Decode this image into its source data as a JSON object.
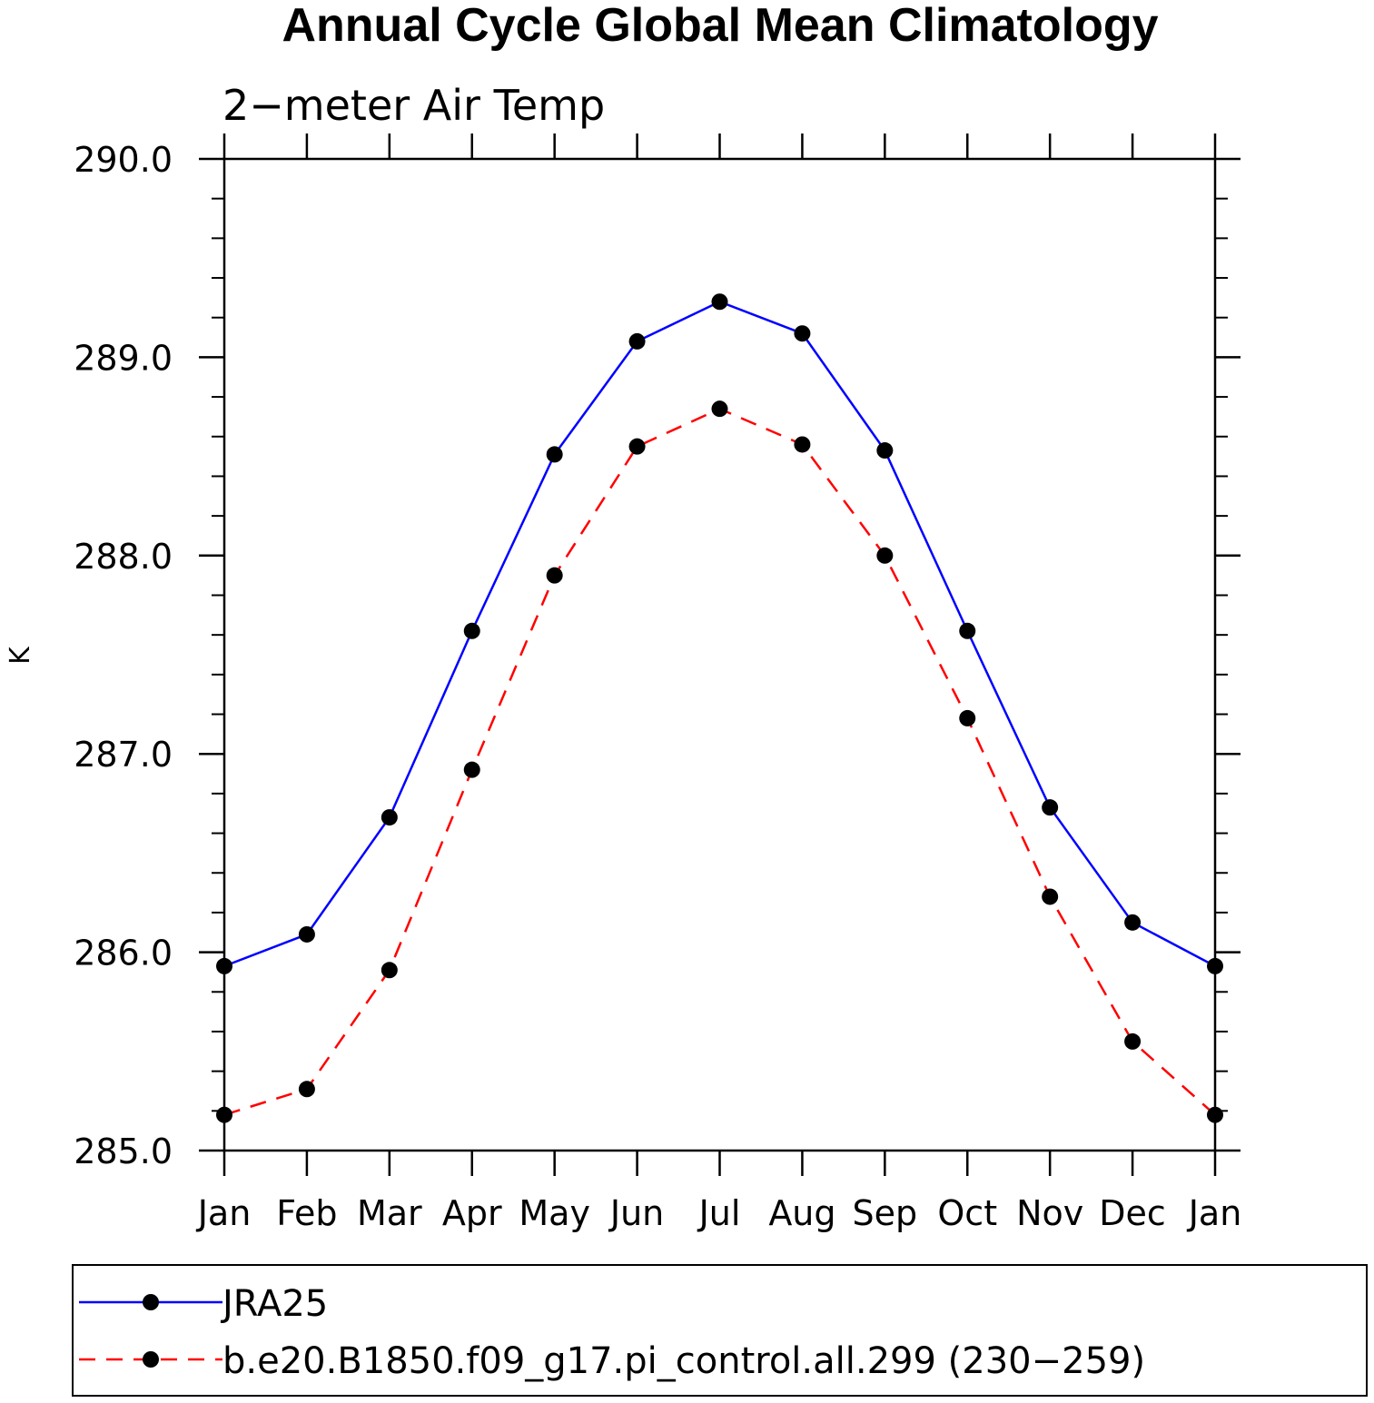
{
  "chart_data": {
    "type": "line",
    "title": "Annual Cycle Global Mean Climatology",
    "subtitle": "2−meter Air Temp",
    "ylabel": "K",
    "xlabel": "",
    "categories": [
      "Jan",
      "Feb",
      "Mar",
      "Apr",
      "May",
      "Jun",
      "Jul",
      "Aug",
      "Sep",
      "Oct",
      "Nov",
      "Dec",
      "Jan"
    ],
    "ylim": [
      285.0,
      290.0
    ],
    "yticks": [
      "285.0",
      "286.0",
      "287.0",
      "288.0",
      "289.0",
      "290.0"
    ],
    "grid": false,
    "legend_position": "bottom",
    "series": [
      {
        "name": "JRA25",
        "color": "#0000ff",
        "dash": "solid",
        "marker": "filled-circle",
        "values": [
          285.93,
          286.09,
          286.68,
          287.62,
          288.51,
          289.08,
          289.28,
          289.12,
          288.53,
          287.62,
          286.73,
          286.15,
          285.93
        ]
      },
      {
        "name": "b.e20.B1850.f09_g17.pi_control.all.299 (230−259)",
        "color": "#ff0000",
        "dash": "dashed",
        "marker": "filled-circle",
        "values": [
          285.18,
          285.31,
          285.91,
          286.92,
          287.9,
          288.55,
          288.74,
          288.56,
          288.0,
          287.18,
          286.28,
          285.55,
          285.18
        ]
      }
    ]
  }
}
